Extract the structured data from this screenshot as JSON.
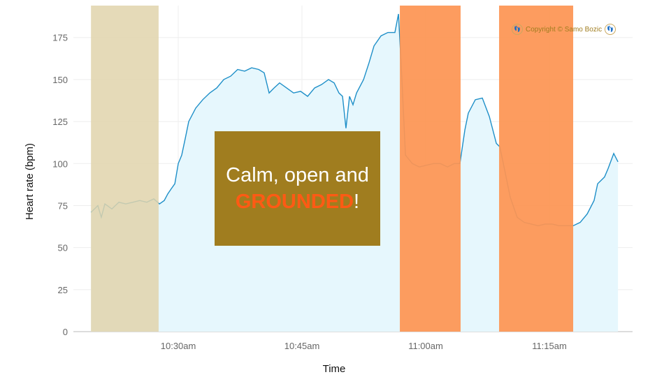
{
  "chart_data": {
    "type": "area",
    "xlabel": "Time",
    "ylabel": "Heart rate (bpm)",
    "xlim": [
      "10:17:17",
      "11:25:05"
    ],
    "ylim": [
      0,
      194
    ],
    "x_ticks": [
      {
        "t": "10:30:00",
        "label": "10:30am"
      },
      {
        "t": "10:45:00",
        "label": "10:45am"
      },
      {
        "t": "11:00:00",
        "label": "11:00am"
      },
      {
        "t": "11:15:00",
        "label": "11:15am"
      }
    ],
    "y_ticks": [
      0,
      25,
      50,
      75,
      100,
      125,
      150,
      175
    ],
    "grid": true,
    "colors": {
      "line": "#1e8fc8",
      "fill": "#e6f7fd",
      "beige_band": "#e0d3ab",
      "orange_band": "#fd9453",
      "overlay_box": "#a07d1f",
      "highlight_text": "#ff5a14"
    },
    "bands": [
      {
        "start": "10:19:25",
        "end": "10:27:37",
        "color": "beige"
      },
      {
        "start": "10:56:52",
        "end": "11:04:14",
        "color": "orange"
      },
      {
        "start": "11:08:54",
        "end": "11:17:53",
        "color": "orange"
      }
    ],
    "points": [
      [
        "10:19:25",
        71
      ],
      [
        "10:20:15",
        75
      ],
      [
        "10:20:40",
        68
      ],
      [
        "10:21:06",
        76
      ],
      [
        "10:21:57",
        73
      ],
      [
        "10:22:48",
        77
      ],
      [
        "10:23:38",
        76
      ],
      [
        "10:24:29",
        77
      ],
      [
        "10:25:20",
        78
      ],
      [
        "10:26:11",
        77
      ],
      [
        "10:27:02",
        79
      ],
      [
        "10:27:43",
        76
      ],
      [
        "10:28:18",
        78
      ],
      [
        "10:28:44",
        82
      ],
      [
        "10:29:09",
        85
      ],
      [
        "10:29:35",
        88
      ],
      [
        "10:30:00",
        100
      ],
      [
        "10:30:25",
        105
      ],
      [
        "10:30:51",
        115
      ],
      [
        "10:31:16",
        125
      ],
      [
        "10:32:07",
        133
      ],
      [
        "10:32:58",
        138
      ],
      [
        "10:33:49",
        142
      ],
      [
        "10:34:40",
        145
      ],
      [
        "10:35:31",
        150
      ],
      [
        "10:36:21",
        152
      ],
      [
        "10:37:12",
        156
      ],
      [
        "10:38:03",
        155
      ],
      [
        "10:38:54",
        157
      ],
      [
        "10:39:45",
        156
      ],
      [
        "10:40:25",
        154
      ],
      [
        "10:41:01",
        142
      ],
      [
        "10:41:37",
        145
      ],
      [
        "10:42:17",
        148
      ],
      [
        "10:43:08",
        145
      ],
      [
        "10:43:59",
        142
      ],
      [
        "10:44:50",
        143
      ],
      [
        "10:45:41",
        140
      ],
      [
        "10:46:32",
        145
      ],
      [
        "10:47:22",
        147
      ],
      [
        "10:48:13",
        150
      ],
      [
        "10:48:54",
        148
      ],
      [
        "10:49:29",
        142
      ],
      [
        "10:49:55",
        140
      ],
      [
        "10:50:20",
        121
      ],
      [
        "10:50:46",
        140
      ],
      [
        "10:51:11",
        135
      ],
      [
        "10:51:37",
        142
      ],
      [
        "10:52:28",
        150
      ],
      [
        "10:53:08",
        160
      ],
      [
        "10:53:44",
        170
      ],
      [
        "10:54:35",
        176
      ],
      [
        "10:55:25",
        178
      ],
      [
        "10:56:16",
        178
      ],
      [
        "10:56:42",
        189
      ],
      [
        "10:57:07",
        150
      ],
      [
        "10:57:33",
        105
      ],
      [
        "10:58:23",
        100
      ],
      [
        "10:59:14",
        98
      ],
      [
        "11:00:05",
        99
      ],
      [
        "11:00:56",
        100
      ],
      [
        "11:01:47",
        100
      ],
      [
        "11:02:38",
        98
      ],
      [
        "11:03:28",
        100
      ],
      [
        "11:04:09",
        100
      ],
      [
        "11:04:45",
        120
      ],
      [
        "11:05:10",
        130
      ],
      [
        "11:06:01",
        138
      ],
      [
        "11:06:52",
        139
      ],
      [
        "11:07:43",
        128
      ],
      [
        "11:08:34",
        112
      ],
      [
        "11:08:59",
        110
      ],
      [
        "11:09:25",
        100
      ],
      [
        "11:10:15",
        80
      ],
      [
        "11:11:06",
        68
      ],
      [
        "11:11:57",
        65
      ],
      [
        "11:12:48",
        64
      ],
      [
        "11:13:38",
        63
      ],
      [
        "11:14:29",
        64
      ],
      [
        "11:15:20",
        64
      ],
      [
        "11:16:11",
        63
      ],
      [
        "11:17:02",
        63
      ],
      [
        "11:17:53",
        63
      ],
      [
        "11:18:44",
        65
      ],
      [
        "11:19:35",
        70
      ],
      [
        "11:20:25",
        78
      ],
      [
        "11:20:51",
        88
      ],
      [
        "11:21:16",
        90
      ],
      [
        "11:21:41",
        92
      ],
      [
        "11:22:07",
        97
      ],
      [
        "11:22:48",
        106
      ],
      [
        "11:23:19",
        101
      ]
    ]
  },
  "overlay": {
    "line1": "Calm, open and",
    "highlight": "GROUNDED",
    "suffix": "!"
  },
  "copyright": "Copyright © Samo Bozic"
}
